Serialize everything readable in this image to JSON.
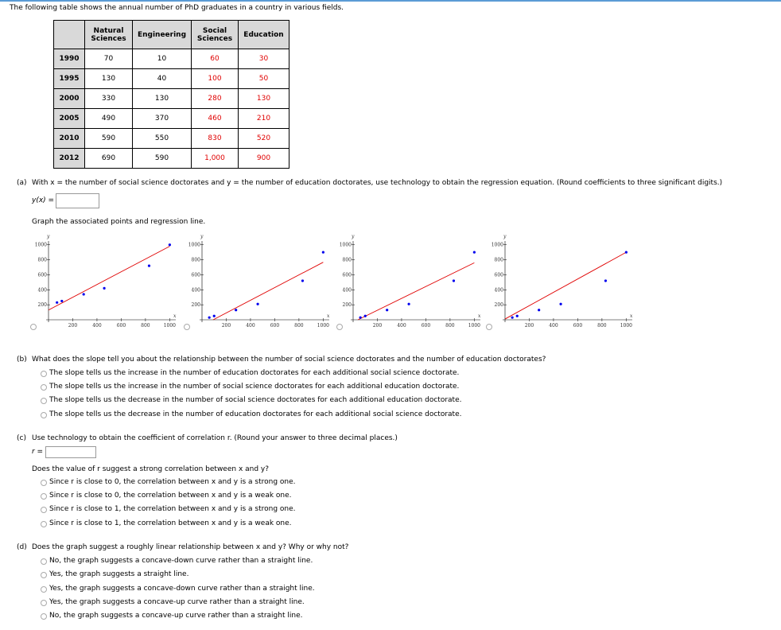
{
  "intro": "The following table shows the annual number of PhD graduates in a country in various fields.",
  "table": {
    "header": [
      "Natural Sciences",
      "Engineering",
      "Social Sciences",
      "Education"
    ],
    "rows": [
      [
        1990,
        70,
        10,
        60,
        30
      ],
      [
        1995,
        130,
        40,
        100,
        50
      ],
      [
        2000,
        330,
        130,
        280,
        130
      ],
      [
        2005,
        490,
        370,
        460,
        210
      ],
      [
        2010,
        590,
        550,
        830,
        520
      ],
      [
        2012,
        690,
        590,
        "1,000",
        900
      ]
    ]
  },
  "part_a": {
    "label": "(a)",
    "question": "With x = the number of social science doctorates and y = the number of education doctorates, use technology to obtain the regression equation. (Round coefficients to three significant digits.)",
    "answer_label": "y(x) =",
    "graph_instruction": "Graph the associated points and regression line."
  },
  "graphs": {
    "x_label": "x",
    "y_label": "y",
    "xlim": [
      0,
      1050
    ],
    "ylim": [
      0,
      1050
    ],
    "xticks": [
      200,
      400,
      600,
      800,
      1000
    ],
    "yticks": [
      200,
      400,
      600,
      800,
      1000
    ],
    "options": [
      {
        "points": [
          [
            70,
            230
          ],
          [
            110,
            250
          ],
          [
            290,
            340
          ],
          [
            460,
            420
          ],
          [
            830,
            720
          ],
          [
            1000,
            1000
          ]
        ],
        "line": [
          [
            0,
            130
          ],
          [
            1000,
            980
          ]
        ]
      },
      {
        "points": [
          [
            60,
            30
          ],
          [
            100,
            50
          ],
          [
            280,
            130
          ],
          [
            460,
            210
          ],
          [
            830,
            520
          ],
          [
            1000,
            900
          ]
        ],
        "line": [
          [
            92,
            0
          ],
          [
            1000,
            767
          ]
        ]
      },
      {
        "points": [
          [
            60,
            30
          ],
          [
            100,
            50
          ],
          [
            280,
            130
          ],
          [
            460,
            210
          ],
          [
            830,
            520
          ],
          [
            1000,
            900
          ]
        ],
        "line": [
          [
            40,
            0
          ],
          [
            1000,
            760
          ]
        ]
      },
      {
        "points": [
          [
            60,
            30
          ],
          [
            100,
            50
          ],
          [
            280,
            130
          ],
          [
            460,
            210
          ],
          [
            830,
            520
          ],
          [
            1000,
            900
          ]
        ],
        "line": [
          [
            0,
            10
          ],
          [
            1000,
            900
          ]
        ]
      }
    ]
  },
  "part_b": {
    "label": "(b)",
    "question": "What does the slope tell you about the relationship between the number of social science doctorates and the number of education doctorates?",
    "options": [
      "The slope tells us the increase in the number of education doctorates for each additional social science doctorate.",
      "The slope tells us the increase in the number of social science doctorates for each additional education doctorate.",
      "The slope tells us the decrease in the number of social science doctorates for each additional education doctorate.",
      "The slope tells us the decrease in the number of education doctorates for each additional social science doctorate."
    ]
  },
  "part_c": {
    "label": "(c)",
    "question": "Use technology to obtain the coefficient of correlation r. (Round your answer to three decimal places.)",
    "answer_label": "r =",
    "followup": "Does the value of r suggest a strong correlation between x and y?",
    "options": [
      "Since r is close to 0, the correlation between x and y is a strong one.",
      "Since r is close to 0, the correlation between x and y is a weak one.",
      "Since r is close to 1, the correlation between x and y is a strong one.",
      "Since r is close to 1, the correlation between x and y is a weak one."
    ]
  },
  "part_d": {
    "label": "(d)",
    "question": "Does the graph suggest a roughly linear relationship between x and y? Why or why not?",
    "options": [
      "No, the graph suggests a concave-down curve rather than a straight line.",
      "Yes, the graph suggests a straight line.",
      "Yes, the graph suggests a concave-down curve rather than a straight line.",
      "Yes, the graph suggests a concave-up curve rather than a straight line.",
      "No, the graph suggests a concave-up curve rather than a straight line."
    ]
  }
}
